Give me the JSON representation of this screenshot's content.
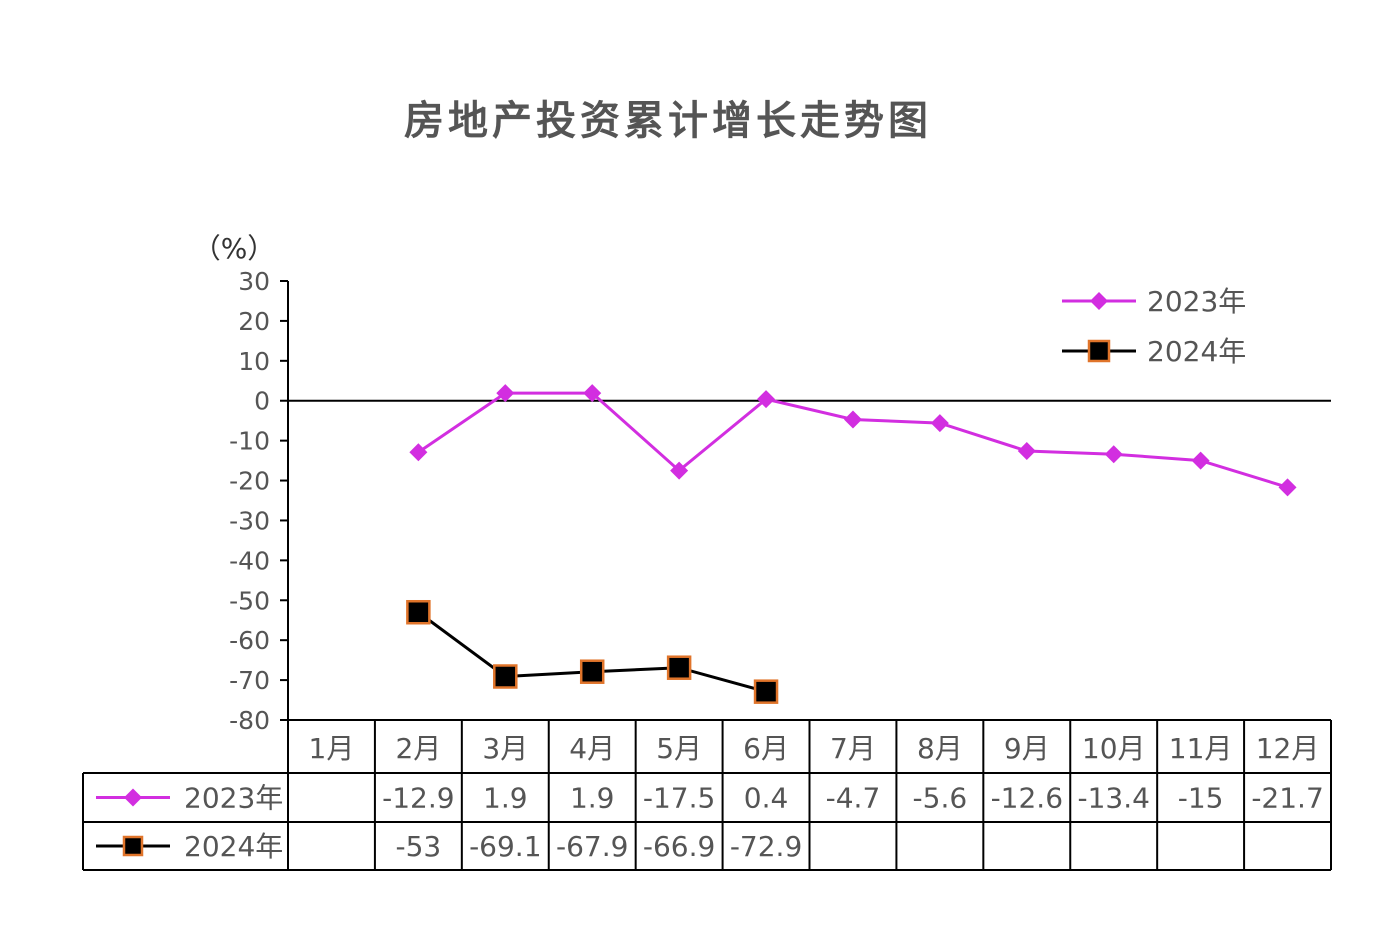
{
  "chart_data": {
    "type": "line",
    "title": "房地产投资累计增长走势图",
    "unit_label": "（%）",
    "ylim": [
      -80,
      30
    ],
    "yticks": [
      30,
      20,
      10,
      0,
      -10,
      -20,
      -30,
      -40,
      -50,
      -60,
      -70,
      -80
    ],
    "categories": [
      "1月",
      "2月",
      "3月",
      "4月",
      "5月",
      "6月",
      "7月",
      "8月",
      "9月",
      "10月",
      "11月",
      "12月"
    ],
    "legend_position": "top-right",
    "data_table": true,
    "series": [
      {
        "name": "2023年",
        "color": "#d22ee0",
        "marker": "diamond",
        "values": [
          null,
          -12.9,
          1.9,
          1.9,
          -17.5,
          0.4,
          -4.7,
          -5.6,
          -12.6,
          -13.4,
          -15,
          -21.7
        ],
        "labels": [
          "",
          "-12.9",
          "1.9",
          "1.9",
          "-17.5",
          "0.4",
          "-4.7",
          "-5.6",
          "-12.6",
          "-13.4",
          "-15",
          "-21.7"
        ]
      },
      {
        "name": "2024年",
        "color": "#000000",
        "marker": "square",
        "marker_edge_color": "#e0742a",
        "values": [
          null,
          -53,
          -69.1,
          -67.9,
          -66.9,
          -72.9,
          null,
          null,
          null,
          null,
          null,
          null
        ],
        "labels": [
          "",
          "-53",
          "-69.1",
          "-67.9",
          "-66.9",
          "-72.9",
          "",
          "",
          "",
          "",
          "",
          ""
        ]
      }
    ]
  }
}
